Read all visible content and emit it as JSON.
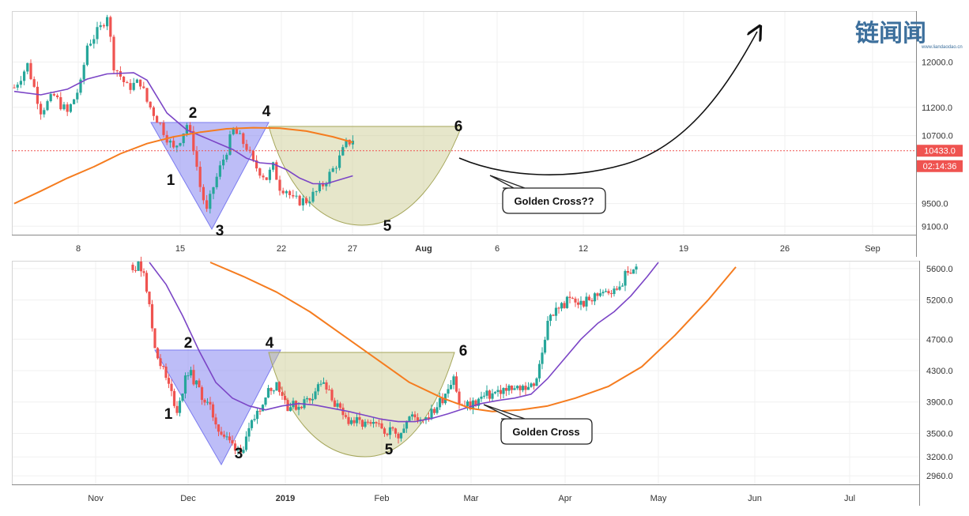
{
  "watermark": {
    "logo_text": "链闻闻",
    "url": "www.liandaodao.cn"
  },
  "colors": {
    "up": "#26a69a",
    "down": "#ef5350",
    "ma_short": "#7b45c6",
    "ma_long": "#f57c1f",
    "triangle": "#7b7bf0",
    "cup": "#c7c88a",
    "price_line": "#ef5350"
  },
  "chart_data": [
    {
      "type": "candlestick",
      "panel": "top",
      "x_ticks": [
        "8",
        "15",
        "22",
        "27",
        "Aug",
        "6",
        "12",
        "19",
        "26",
        "Sep"
      ],
      "y_ticks": [
        12000.0,
        11200.0,
        10700.0,
        9500.0,
        9100.0
      ],
      "y_tick_labels": [
        "12000.0",
        "11200.0",
        "10700.0",
        "9500.0",
        "9100.0"
      ],
      "ylim": [
        8950,
        12900
      ],
      "current_price": 10433.0,
      "current_price_label": "10433.0",
      "countdown_label": "02:14:36",
      "pattern_points": [
        "1",
        "2",
        "3",
        "4",
        "5",
        "6"
      ],
      "callout": "Golden Cross??",
      "ohlc_anchors": [
        {
          "t": 0,
          "p": 11550
        },
        {
          "t": 2,
          "p": 11950
        },
        {
          "t": 4,
          "p": 11150
        },
        {
          "t": 6,
          "p": 11400
        },
        {
          "t": 8,
          "p": 11100
        },
        {
          "t": 10,
          "p": 11600
        },
        {
          "t": 11,
          "p": 12300
        },
        {
          "t": 13,
          "p": 12600
        },
        {
          "t": 14,
          "p": 12850
        },
        {
          "t": 15,
          "p": 11950
        },
        {
          "t": 17,
          "p": 11550
        },
        {
          "t": 19,
          "p": 11650
        },
        {
          "t": 20,
          "p": 11300
        },
        {
          "t": 22,
          "p": 10900
        },
        {
          "t": 24,
          "p": 10450
        },
        {
          "t": 25,
          "p": 10650
        },
        {
          "t": 26,
          "p": 10900
        },
        {
          "t": 27,
          "p": 10500
        },
        {
          "t": 28,
          "p": 9800
        },
        {
          "t": 29,
          "p": 9350
        },
        {
          "t": 30,
          "p": 9800
        },
        {
          "t": 32,
          "p": 10450
        },
        {
          "t": 33,
          "p": 10800
        },
        {
          "t": 34,
          "p": 10650
        },
        {
          "t": 35,
          "p": 10500
        },
        {
          "t": 36,
          "p": 10200
        },
        {
          "t": 38,
          "p": 9950
        },
        {
          "t": 39,
          "p": 10150
        },
        {
          "t": 40,
          "p": 9800
        },
        {
          "t": 41,
          "p": 9750
        },
        {
          "t": 42,
          "p": 9550
        },
        {
          "t": 44,
          "p": 9550
        },
        {
          "t": 46,
          "p": 9750
        },
        {
          "t": 48,
          "p": 10100
        },
        {
          "t": 49,
          "p": 10300
        },
        {
          "t": 50,
          "p": 10550
        },
        {
          "t": 51,
          "p": 10640
        }
      ],
      "ma_short": [
        {
          "t": 0,
          "p": 11480
        },
        {
          "t": 4,
          "p": 11420
        },
        {
          "t": 8,
          "p": 11520
        },
        {
          "t": 11,
          "p": 11700
        },
        {
          "t": 14,
          "p": 11790
        },
        {
          "t": 18,
          "p": 11810
        },
        {
          "t": 20,
          "p": 11680
        },
        {
          "t": 23,
          "p": 11100
        },
        {
          "t": 26,
          "p": 10800
        },
        {
          "t": 29,
          "p": 10650
        },
        {
          "t": 31,
          "p": 10550
        },
        {
          "t": 33,
          "p": 10450
        },
        {
          "t": 35,
          "p": 10300
        },
        {
          "t": 37,
          "p": 10220
        },
        {
          "t": 39,
          "p": 10200
        },
        {
          "t": 41,
          "p": 10100
        },
        {
          "t": 43,
          "p": 9950
        },
        {
          "t": 45,
          "p": 9850
        },
        {
          "t": 47,
          "p": 9850
        },
        {
          "t": 49,
          "p": 9920
        },
        {
          "t": 51,
          "p": 9990
        }
      ],
      "ma_long": [
        {
          "t": 0,
          "p": 9500
        },
        {
          "t": 4,
          "p": 9720
        },
        {
          "t": 8,
          "p": 9950
        },
        {
          "t": 12,
          "p": 10150
        },
        {
          "t": 16,
          "p": 10380
        },
        {
          "t": 20,
          "p": 10560
        },
        {
          "t": 24,
          "p": 10680
        },
        {
          "t": 28,
          "p": 10760
        },
        {
          "t": 32,
          "p": 10820
        },
        {
          "t": 36,
          "p": 10840
        },
        {
          "t": 40,
          "p": 10830
        },
        {
          "t": 44,
          "p": 10780
        },
        {
          "t": 48,
          "p": 10680
        },
        {
          "t": 51,
          "p": 10580
        }
      ]
    },
    {
      "type": "candlestick",
      "panel": "bottom",
      "x_ticks": [
        "Nov",
        "Dec",
        "2019",
        "Feb",
        "Mar",
        "Apr",
        "May",
        "Jun",
        "Jul"
      ],
      "y_ticks": [
        5600.0,
        5200.0,
        4700.0,
        4300.0,
        3900.0,
        3500.0,
        3200.0,
        2960.0
      ],
      "y_tick_labels": [
        "5600.0",
        "5200.0",
        "4700.0",
        "4300.0",
        "3900.0",
        "3500.0",
        "3200.0",
        "2960.0"
      ],
      "ylim": [
        2850,
        5700
      ],
      "pattern_points": [
        "1",
        "2",
        "3",
        "4",
        "5",
        "6"
      ],
      "callout": "Golden Cross",
      "ohlc_anchors": [
        {
          "t": 0,
          "p": 5650
        },
        {
          "t": 2,
          "p": 5600
        },
        {
          "t": 4,
          "p": 4600
        },
        {
          "t": 6,
          "p": 4200
        },
        {
          "t": 8,
          "p": 3800
        },
        {
          "t": 10,
          "p": 4300
        },
        {
          "t": 12,
          "p": 4050
        },
        {
          "t": 14,
          "p": 3800
        },
        {
          "t": 16,
          "p": 3500
        },
        {
          "t": 18,
          "p": 3350
        },
        {
          "t": 20,
          "p": 3300
        },
        {
          "t": 22,
          "p": 3700
        },
        {
          "t": 24,
          "p": 4000
        },
        {
          "t": 26,
          "p": 4150
        },
        {
          "t": 28,
          "p": 3850
        },
        {
          "t": 30,
          "p": 3850
        },
        {
          "t": 32,
          "p": 3950
        },
        {
          "t": 34,
          "p": 4150
        },
        {
          "t": 36,
          "p": 3950
        },
        {
          "t": 38,
          "p": 3700
        },
        {
          "t": 40,
          "p": 3650
        },
        {
          "t": 42,
          "p": 3600
        },
        {
          "t": 44,
          "p": 3580
        },
        {
          "t": 46,
          "p": 3550
        },
        {
          "t": 48,
          "p": 3500
        },
        {
          "t": 50,
          "p": 3700
        },
        {
          "t": 52,
          "p": 3700
        },
        {
          "t": 54,
          "p": 3750
        },
        {
          "t": 56,
          "p": 3950
        },
        {
          "t": 58,
          "p": 4250
        },
        {
          "t": 59,
          "p": 3850
        },
        {
          "t": 61,
          "p": 3850
        },
        {
          "t": 63,
          "p": 3950
        },
        {
          "t": 65,
          "p": 4000
        },
        {
          "t": 67,
          "p": 4050
        },
        {
          "t": 69,
          "p": 4050
        },
        {
          "t": 71,
          "p": 4100
        },
        {
          "t": 73,
          "p": 4150
        },
        {
          "t": 75,
          "p": 4950
        },
        {
          "t": 77,
          "p": 5100
        },
        {
          "t": 79,
          "p": 5200
        },
        {
          "t": 81,
          "p": 5150
        },
        {
          "t": 83,
          "p": 5200
        },
        {
          "t": 85,
          "p": 5350
        },
        {
          "t": 87,
          "p": 5300
        },
        {
          "t": 89,
          "p": 5500
        },
        {
          "t": 91,
          "p": 5650
        }
      ],
      "ma_short": [
        {
          "t": 3,
          "p": 5680
        },
        {
          "t": 6,
          "p": 5400
        },
        {
          "t": 9,
          "p": 5000
        },
        {
          "t": 12,
          "p": 4550
        },
        {
          "t": 15,
          "p": 4150
        },
        {
          "t": 18,
          "p": 3950
        },
        {
          "t": 21,
          "p": 3850
        },
        {
          "t": 24,
          "p": 3800
        },
        {
          "t": 27,
          "p": 3850
        },
        {
          "t": 30,
          "p": 3880
        },
        {
          "t": 33,
          "p": 3860
        },
        {
          "t": 36,
          "p": 3820
        },
        {
          "t": 39,
          "p": 3780
        },
        {
          "t": 42,
          "p": 3730
        },
        {
          "t": 45,
          "p": 3680
        },
        {
          "t": 48,
          "p": 3650
        },
        {
          "t": 51,
          "p": 3650
        },
        {
          "t": 54,
          "p": 3690
        },
        {
          "t": 57,
          "p": 3750
        },
        {
          "t": 60,
          "p": 3820
        },
        {
          "t": 63,
          "p": 3880
        },
        {
          "t": 66,
          "p": 3920
        },
        {
          "t": 69,
          "p": 3950
        },
        {
          "t": 72,
          "p": 4000
        },
        {
          "t": 75,
          "p": 4200
        },
        {
          "t": 78,
          "p": 4450
        },
        {
          "t": 81,
          "p": 4700
        },
        {
          "t": 84,
          "p": 4900
        },
        {
          "t": 87,
          "p": 5050
        },
        {
          "t": 90,
          "p": 5250
        },
        {
          "t": 93,
          "p": 5500
        },
        {
          "t": 95,
          "p": 5680
        }
      ],
      "ma_long": [
        {
          "t": 14,
          "p": 5680
        },
        {
          "t": 20,
          "p": 5500
        },
        {
          "t": 26,
          "p": 5300
        },
        {
          "t": 32,
          "p": 5050
        },
        {
          "t": 38,
          "p": 4750
        },
        {
          "t": 44,
          "p": 4450
        },
        {
          "t": 50,
          "p": 4150
        },
        {
          "t": 56,
          "p": 3950
        },
        {
          "t": 61,
          "p": 3820
        },
        {
          "t": 65,
          "p": 3780
        },
        {
          "t": 70,
          "p": 3800
        },
        {
          "t": 75,
          "p": 3850
        },
        {
          "t": 80,
          "p": 3950
        },
        {
          "t": 86,
          "p": 4100
        },
        {
          "t": 92,
          "p": 4350
        },
        {
          "t": 98,
          "p": 4750
        },
        {
          "t": 104,
          "p": 5200
        },
        {
          "t": 109,
          "p": 5620
        }
      ]
    }
  ]
}
